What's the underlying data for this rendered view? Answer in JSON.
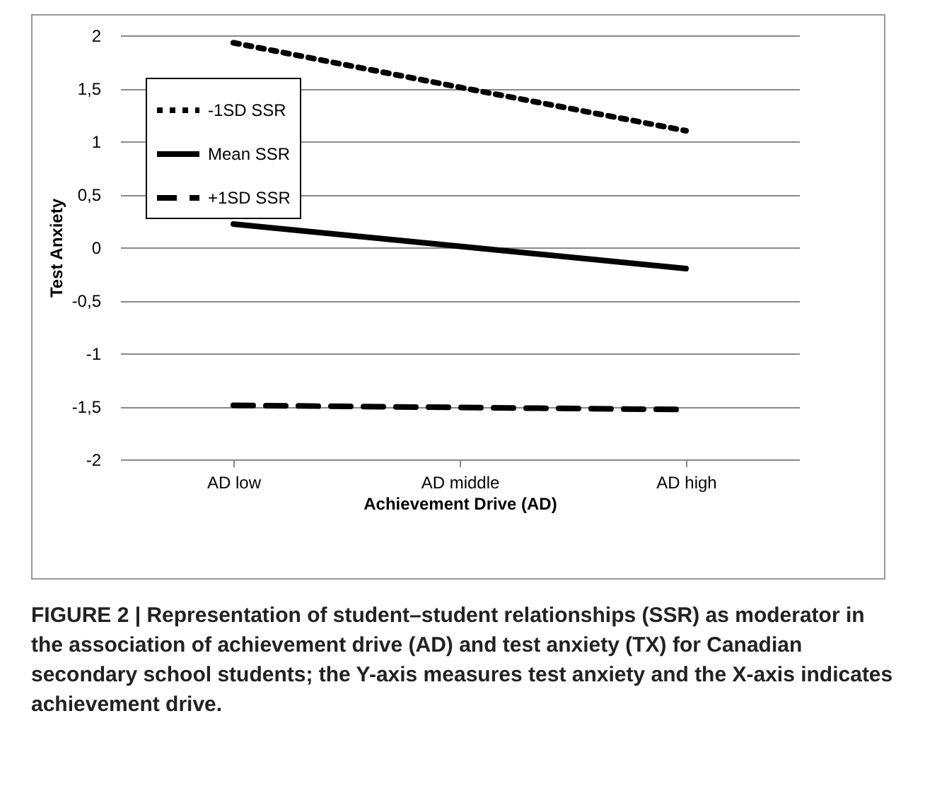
{
  "chart_data": {
    "type": "line",
    "ylabel": "Test Anxiety",
    "xlabel": "Achievement Drive (AD)",
    "categories": [
      "AD low",
      "AD middle",
      "AD high"
    ],
    "series": [
      {
        "name": "-1SD SSR",
        "color": "#000000",
        "line_style": "dotted",
        "values": [
          1.93,
          1.51,
          1.1
        ]
      },
      {
        "name": "Mean SSR",
        "color": "#000000",
        "line_style": "solid",
        "values": [
          0.22,
          0.01,
          -0.2
        ]
      },
      {
        "name": "+1SD SSR",
        "color": "#000000",
        "line_style": "dashed",
        "values": [
          -1.49,
          -1.51,
          -1.53
        ]
      }
    ],
    "ylim": [
      -2,
      2
    ],
    "yticks": [
      {
        "value": -2,
        "label": "-2"
      },
      {
        "value": -1.5,
        "label": "-1,5"
      },
      {
        "value": -1,
        "label": "-1"
      },
      {
        "value": -0.5,
        "label": "-0,5"
      },
      {
        "value": 0,
        "label": "0"
      },
      {
        "value": 0.5,
        "label": "0,5"
      },
      {
        "value": 1,
        "label": "1"
      },
      {
        "value": 1.5,
        "label": "1,5"
      },
      {
        "value": 2,
        "label": "2"
      }
    ],
    "grid": "y",
    "legend": "top left",
    "marker": "none",
    "annotations": [
      "FIGURE 2 | Representation of student–student relationships (SSR) as moderator in the association of achievement drive (AD) and test anxiety (TX) for Canadian secondary school students; the Y-axis measures test anxiety and the X-axis indicates achievement drive."
    ]
  }
}
